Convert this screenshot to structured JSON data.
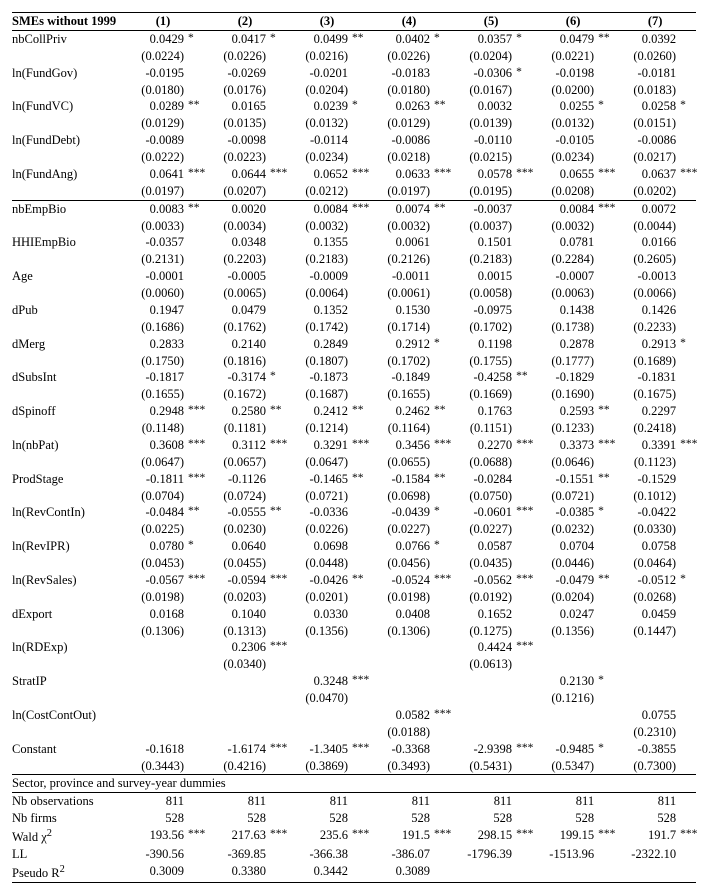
{
  "table_title": "SMEs without 1999",
  "columns": [
    "(1)",
    "(2)",
    "(3)",
    "(4)",
    "(5)",
    "(6)",
    "(7)"
  ],
  "footer_label": "Sector, province and survey-year dummies",
  "vars": [
    {
      "name": "nbCollPriv",
      "block": 1,
      "coef": [
        "0.0429",
        "0.0417",
        "0.0499",
        "0.0402",
        "0.0357",
        "0.0479",
        "0.0392"
      ],
      "sig": [
        "*",
        "*",
        "**",
        "*",
        "*",
        "**",
        ""
      ],
      "se": [
        "(0.0224)",
        "(0.0226)",
        "(0.0216)",
        "(0.0226)",
        "(0.0204)",
        "(0.0221)",
        "(0.0260)"
      ]
    },
    {
      "name": "ln(FundGov)",
      "block": 1,
      "coef": [
        "-0.0195",
        "-0.0269",
        "-0.0201",
        "-0.0183",
        "-0.0306",
        "-0.0198",
        "-0.0181"
      ],
      "sig": [
        "",
        "",
        "",
        "",
        "*",
        "",
        ""
      ],
      "se": [
        "(0.0180)",
        "(0.0176)",
        "(0.0204)",
        "(0.0180)",
        "(0.0167)",
        "(0.0200)",
        "(0.0183)"
      ]
    },
    {
      "name": "ln(FundVC)",
      "block": 1,
      "coef": [
        "0.0289",
        "0.0165",
        "0.0239",
        "0.0263",
        "0.0032",
        "0.0255",
        "0.0258"
      ],
      "sig": [
        "**",
        "",
        "*",
        "**",
        "",
        "*",
        "*"
      ],
      "se": [
        "(0.0129)",
        "(0.0135)",
        "(0.0132)",
        "(0.0129)",
        "(0.0139)",
        "(0.0132)",
        "(0.0151)"
      ]
    },
    {
      "name": "ln(FundDebt)",
      "block": 1,
      "coef": [
        "-0.0089",
        "-0.0098",
        "-0.0114",
        "-0.0086",
        "-0.0110",
        "-0.0105",
        "-0.0086"
      ],
      "sig": [
        "",
        "",
        "",
        "",
        "",
        "",
        ""
      ],
      "se": [
        "(0.0222)",
        "(0.0223)",
        "(0.0234)",
        "(0.0218)",
        "(0.0215)",
        "(0.0234)",
        "(0.0217)"
      ]
    },
    {
      "name": "ln(FundAng)",
      "block": 1,
      "last_in_block": true,
      "coef": [
        "0.0641",
        "0.0644",
        "0.0652",
        "0.0633",
        "0.0578",
        "0.0655",
        "0.0637"
      ],
      "sig": [
        "***",
        "***",
        "***",
        "***",
        "***",
        "***",
        "***"
      ],
      "se": [
        "(0.0197)",
        "(0.0207)",
        "(0.0212)",
        "(0.0197)",
        "(0.0195)",
        "(0.0208)",
        "(0.0202)"
      ]
    },
    {
      "name": "nbEmpBio",
      "block": 2,
      "coef": [
        "0.0083",
        "0.0020",
        "0.0084",
        "0.0074",
        "-0.0037",
        "0.0084",
        "0.0072"
      ],
      "sig": [
        "**",
        "",
        "***",
        "**",
        "",
        "***",
        ""
      ],
      "se": [
        "(0.0033)",
        "(0.0034)",
        "(0.0032)",
        "(0.0032)",
        "(0.0037)",
        "(0.0032)",
        "(0.0044)"
      ]
    },
    {
      "name": "HHIEmpBio",
      "block": 2,
      "coef": [
        "-0.0357",
        "0.0348",
        "0.1355",
        "0.0061",
        "0.1501",
        "0.0781",
        "0.0166"
      ],
      "sig": [
        "",
        "",
        "",
        "",
        "",
        "",
        ""
      ],
      "se": [
        "(0.2131)",
        "(0.2203)",
        "(0.2183)",
        "(0.2126)",
        "(0.2183)",
        "(0.2284)",
        "(0.2605)"
      ]
    },
    {
      "name": "Age",
      "block": 2,
      "coef": [
        "-0.0001",
        "-0.0005",
        "-0.0009",
        "-0.0011",
        "0.0015",
        "-0.0007",
        "-0.0013"
      ],
      "sig": [
        "",
        "",
        "",
        "",
        "",
        "",
        ""
      ],
      "se": [
        "(0.0060)",
        "(0.0065)",
        "(0.0064)",
        "(0.0061)",
        "(0.0058)",
        "(0.0063)",
        "(0.0066)"
      ]
    },
    {
      "name": "dPub",
      "block": 2,
      "coef": [
        "0.1947",
        "0.0479",
        "0.1352",
        "0.1530",
        "-0.0975",
        "0.1438",
        "0.1426"
      ],
      "sig": [
        "",
        "",
        "",
        "",
        "",
        "",
        ""
      ],
      "se": [
        "(0.1686)",
        "(0.1762)",
        "(0.1742)",
        "(0.1714)",
        "(0.1702)",
        "(0.1738)",
        "(0.2233)"
      ]
    },
    {
      "name": "dMerg",
      "block": 2,
      "coef": [
        "0.2833",
        "0.2140",
        "0.2849",
        "0.2912",
        "0.1198",
        "0.2878",
        "0.2913"
      ],
      "sig": [
        "",
        "",
        "",
        "*",
        "",
        "",
        "*"
      ],
      "se": [
        "(0.1750)",
        "(0.1816)",
        "(0.1807)",
        "(0.1702)",
        "(0.1755)",
        "(0.1777)",
        "(0.1689)"
      ]
    },
    {
      "name": "dSubsInt",
      "block": 2,
      "coef": [
        "-0.1817",
        "-0.3174",
        "-0.1873",
        "-0.1849",
        "-0.4258",
        "-0.1829",
        "-0.1831"
      ],
      "sig": [
        "",
        "*",
        "",
        "",
        "**",
        "",
        ""
      ],
      "se": [
        "(0.1655)",
        "(0.1672)",
        "(0.1687)",
        "(0.1655)",
        "(0.1669)",
        "(0.1690)",
        "(0.1675)"
      ]
    },
    {
      "name": "dSpinoff",
      "block": 2,
      "coef": [
        "0.2948",
        "0.2580",
        "0.2412",
        "0.2462",
        "0.1763",
        "0.2593",
        "0.2297"
      ],
      "sig": [
        "***",
        "**",
        "**",
        "**",
        "",
        "**",
        ""
      ],
      "se": [
        "(0.1148)",
        "(0.1181)",
        "(0.1214)",
        "(0.1164)",
        "(0.1151)",
        "(0.1233)",
        "(0.2418)"
      ]
    },
    {
      "name": "ln(nbPat)",
      "block": 2,
      "coef": [
        "0.3608",
        "0.3112",
        "0.3291",
        "0.3456",
        "0.2270",
        "0.3373",
        "0.3391"
      ],
      "sig": [
        "***",
        "***",
        "***",
        "***",
        "***",
        "***",
        "***"
      ],
      "se": [
        "(0.0647)",
        "(0.0657)",
        "(0.0647)",
        "(0.0655)",
        "(0.0688)",
        "(0.0646)",
        "(0.1123)"
      ]
    },
    {
      "name": "ProdStage",
      "block": 2,
      "coef": [
        "-0.1811",
        "-0.1126",
        "-0.1465",
        "-0.1584",
        "-0.0284",
        "-0.1551",
        "-0.1529"
      ],
      "sig": [
        "***",
        "",
        "**",
        "**",
        "",
        "**",
        ""
      ],
      "se": [
        "(0.0704)",
        "(0.0724)",
        "(0.0721)",
        "(0.0698)",
        "(0.0750)",
        "(0.0721)",
        "(0.1012)"
      ]
    },
    {
      "name": "ln(RevContIn)",
      "block": 2,
      "coef": [
        "-0.0484",
        "-0.0555",
        "-0.0336",
        "-0.0439",
        "-0.0601",
        "-0.0385",
        "-0.0422"
      ],
      "sig": [
        "**",
        "**",
        "",
        "*",
        "***",
        "*",
        ""
      ],
      "se": [
        "(0.0225)",
        "(0.0230)",
        "(0.0226)",
        "(0.0227)",
        "(0.0227)",
        "(0.0232)",
        "(0.0330)"
      ]
    },
    {
      "name": "ln(RevIPR)",
      "block": 2,
      "coef": [
        "0.0780",
        "0.0640",
        "0.0698",
        "0.0766",
        "0.0587",
        "0.0704",
        "0.0758"
      ],
      "sig": [
        "*",
        "",
        "",
        "*",
        "",
        "",
        ""
      ],
      "se": [
        "(0.0453)",
        "(0.0455)",
        "(0.0448)",
        "(0.0456)",
        "(0.0435)",
        "(0.0446)",
        "(0.0464)"
      ]
    },
    {
      "name": "ln(RevSales)",
      "block": 2,
      "coef": [
        "-0.0567",
        "-0.0594",
        "-0.0426",
        "-0.0524",
        "-0.0562",
        "-0.0479",
        "-0.0512"
      ],
      "sig": [
        "***",
        "***",
        "**",
        "***",
        "***",
        "**",
        "*"
      ],
      "se": [
        "(0.0198)",
        "(0.0203)",
        "(0.0201)",
        "(0.0198)",
        "(0.0192)",
        "(0.0204)",
        "(0.0268)"
      ]
    },
    {
      "name": "dExport",
      "block": 2,
      "coef": [
        "0.0168",
        "0.1040",
        "0.0330",
        "0.0408",
        "0.1652",
        "0.0247",
        "0.0459"
      ],
      "sig": [
        "",
        "",
        "",
        "",
        "",
        "",
        ""
      ],
      "se": [
        "(0.1306)",
        "(0.1313)",
        "(0.1356)",
        "(0.1306)",
        "(0.1275)",
        "(0.1356)",
        "(0.1447)"
      ]
    },
    {
      "name": "ln(RDExp)",
      "block": 2,
      "coef": [
        "",
        "0.2306",
        "",
        "",
        "0.4424",
        "",
        ""
      ],
      "sig": [
        "",
        "***",
        "",
        "",
        "***",
        "",
        ""
      ],
      "se": [
        "",
        "(0.0340)",
        "",
        "",
        "(0.0613)",
        "",
        ""
      ]
    },
    {
      "name": "StratIP",
      "block": 2,
      "coef": [
        "",
        "",
        "0.3248",
        "",
        "",
        "0.2130",
        ""
      ],
      "sig": [
        "",
        "",
        "***",
        "",
        "",
        "*",
        ""
      ],
      "se": [
        "",
        "",
        "(0.0470)",
        "",
        "",
        "(0.1216)",
        ""
      ]
    },
    {
      "name": "ln(CostContOut)",
      "block": 2,
      "coef": [
        "",
        "",
        "",
        "0.0582",
        "",
        "",
        "0.0755"
      ],
      "sig": [
        "",
        "",
        "",
        "***",
        "",
        "",
        ""
      ],
      "se": [
        "",
        "",
        "",
        "(0.0188)",
        "",
        "",
        "(0.2310)"
      ]
    },
    {
      "name": "Constant",
      "block": 2,
      "last_in_block": true,
      "coef": [
        "-0.1618",
        "-1.6174",
        "-1.3405",
        "-0.3368",
        "-2.9398",
        "-0.9485",
        "-0.3855"
      ],
      "sig": [
        "",
        "***",
        "***",
        "",
        "***",
        "*",
        ""
      ],
      "se": [
        "(0.3443)",
        "(0.4216)",
        "(0.3869)",
        "(0.3493)",
        "(0.5431)",
        "(0.5347)",
        "(0.7300)"
      ]
    }
  ],
  "stats": [
    {
      "name": "Nb observations",
      "vals": [
        "811",
        "811",
        "811",
        "811",
        "811",
        "811",
        "811"
      ],
      "sig": [
        "",
        "",
        "",
        "",
        "",
        "",
        ""
      ]
    },
    {
      "name": "Nb firms",
      "vals": [
        "528",
        "528",
        "528",
        "528",
        "528",
        "528",
        "528"
      ],
      "sig": [
        "",
        "",
        "",
        "",
        "",
        "",
        ""
      ]
    },
    {
      "name": "Wald χ",
      "sup": "2",
      "vals": [
        "193.56",
        "217.63",
        "235.6",
        "191.5",
        "298.15",
        "199.15",
        "191.7"
      ],
      "sig": [
        "***",
        "***",
        "***",
        "***",
        "***",
        "***",
        "***"
      ]
    },
    {
      "name": "LL",
      "vals": [
        "-390.56",
        "-369.85",
        "-366.38",
        "-386.07",
        "-1796.39",
        "-1513.96",
        "-2322.10"
      ],
      "sig": [
        "",
        "",
        "",
        "",
        "",
        "",
        ""
      ]
    },
    {
      "name": "Pseudo R",
      "sup": "2",
      "last": true,
      "vals": [
        "0.3009",
        "0.3380",
        "0.3442",
        "0.3089",
        "",
        "",
        ""
      ],
      "sig": [
        "",
        "",
        "",
        "",
        "",
        "",
        ""
      ]
    }
  ]
}
